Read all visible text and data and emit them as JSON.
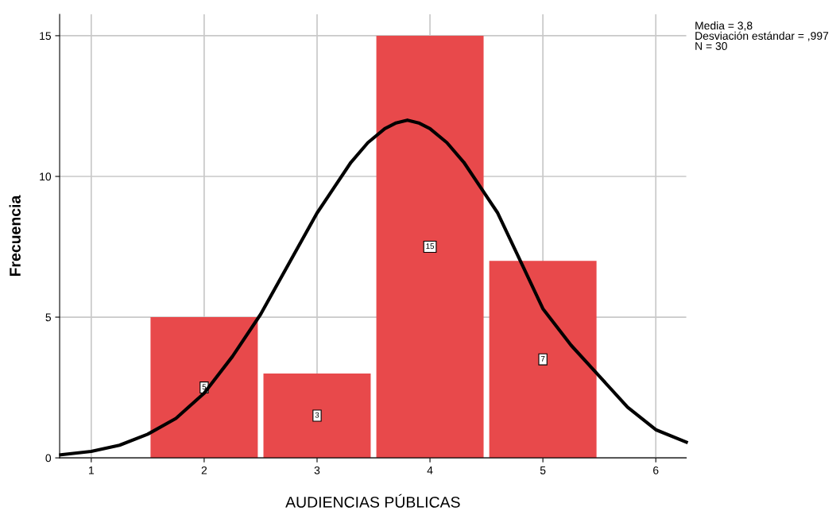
{
  "chart_data": {
    "type": "histogram",
    "xlabel": "AUDIENCIAS PÚBLICAS",
    "ylabel": "Frecuencia",
    "bins": [
      1.5,
      2.5,
      3.5,
      4.5,
      5.5
    ],
    "values": [
      5,
      3,
      15,
      7
    ],
    "color": "#e8494b",
    "value_labels": [
      "5",
      "3",
      "15",
      "7"
    ],
    "series": [
      {
        "type": "line",
        "color": "#000000",
        "x": [
          0.73,
          1,
          1.25,
          1.5,
          1.75,
          2,
          2.25,
          2.5,
          2.75,
          3,
          3.15,
          3.3,
          3.45,
          3.6,
          3.7,
          3.8,
          3.9,
          4,
          4.15,
          4.3,
          4.45,
          4.6,
          4.8,
          5,
          5.25,
          5.5,
          5.75,
          6,
          6.27
        ],
        "values": [
          0.11,
          0.23,
          0.45,
          0.84,
          1.4,
          2.3,
          3.6,
          5.1,
          6.9,
          8.7,
          9.6,
          10.5,
          11.2,
          11.7,
          11.9,
          12.0,
          11.9,
          11.7,
          11.2,
          10.5,
          9.6,
          8.7,
          7.0,
          5.3,
          4.0,
          2.9,
          1.8,
          1.0,
          0.56
        ]
      }
    ],
    "xlim": [
      0.72,
      6.27
    ],
    "xticks": [
      1,
      2,
      3,
      4,
      5,
      6
    ],
    "ylim": [
      0,
      15.76
    ],
    "yticks": [
      0,
      5,
      10,
      15
    ],
    "grid": true,
    "annotations": [
      "Media = 3,8",
      "Desviación estándar = ,997",
      "N = 30"
    ]
  }
}
